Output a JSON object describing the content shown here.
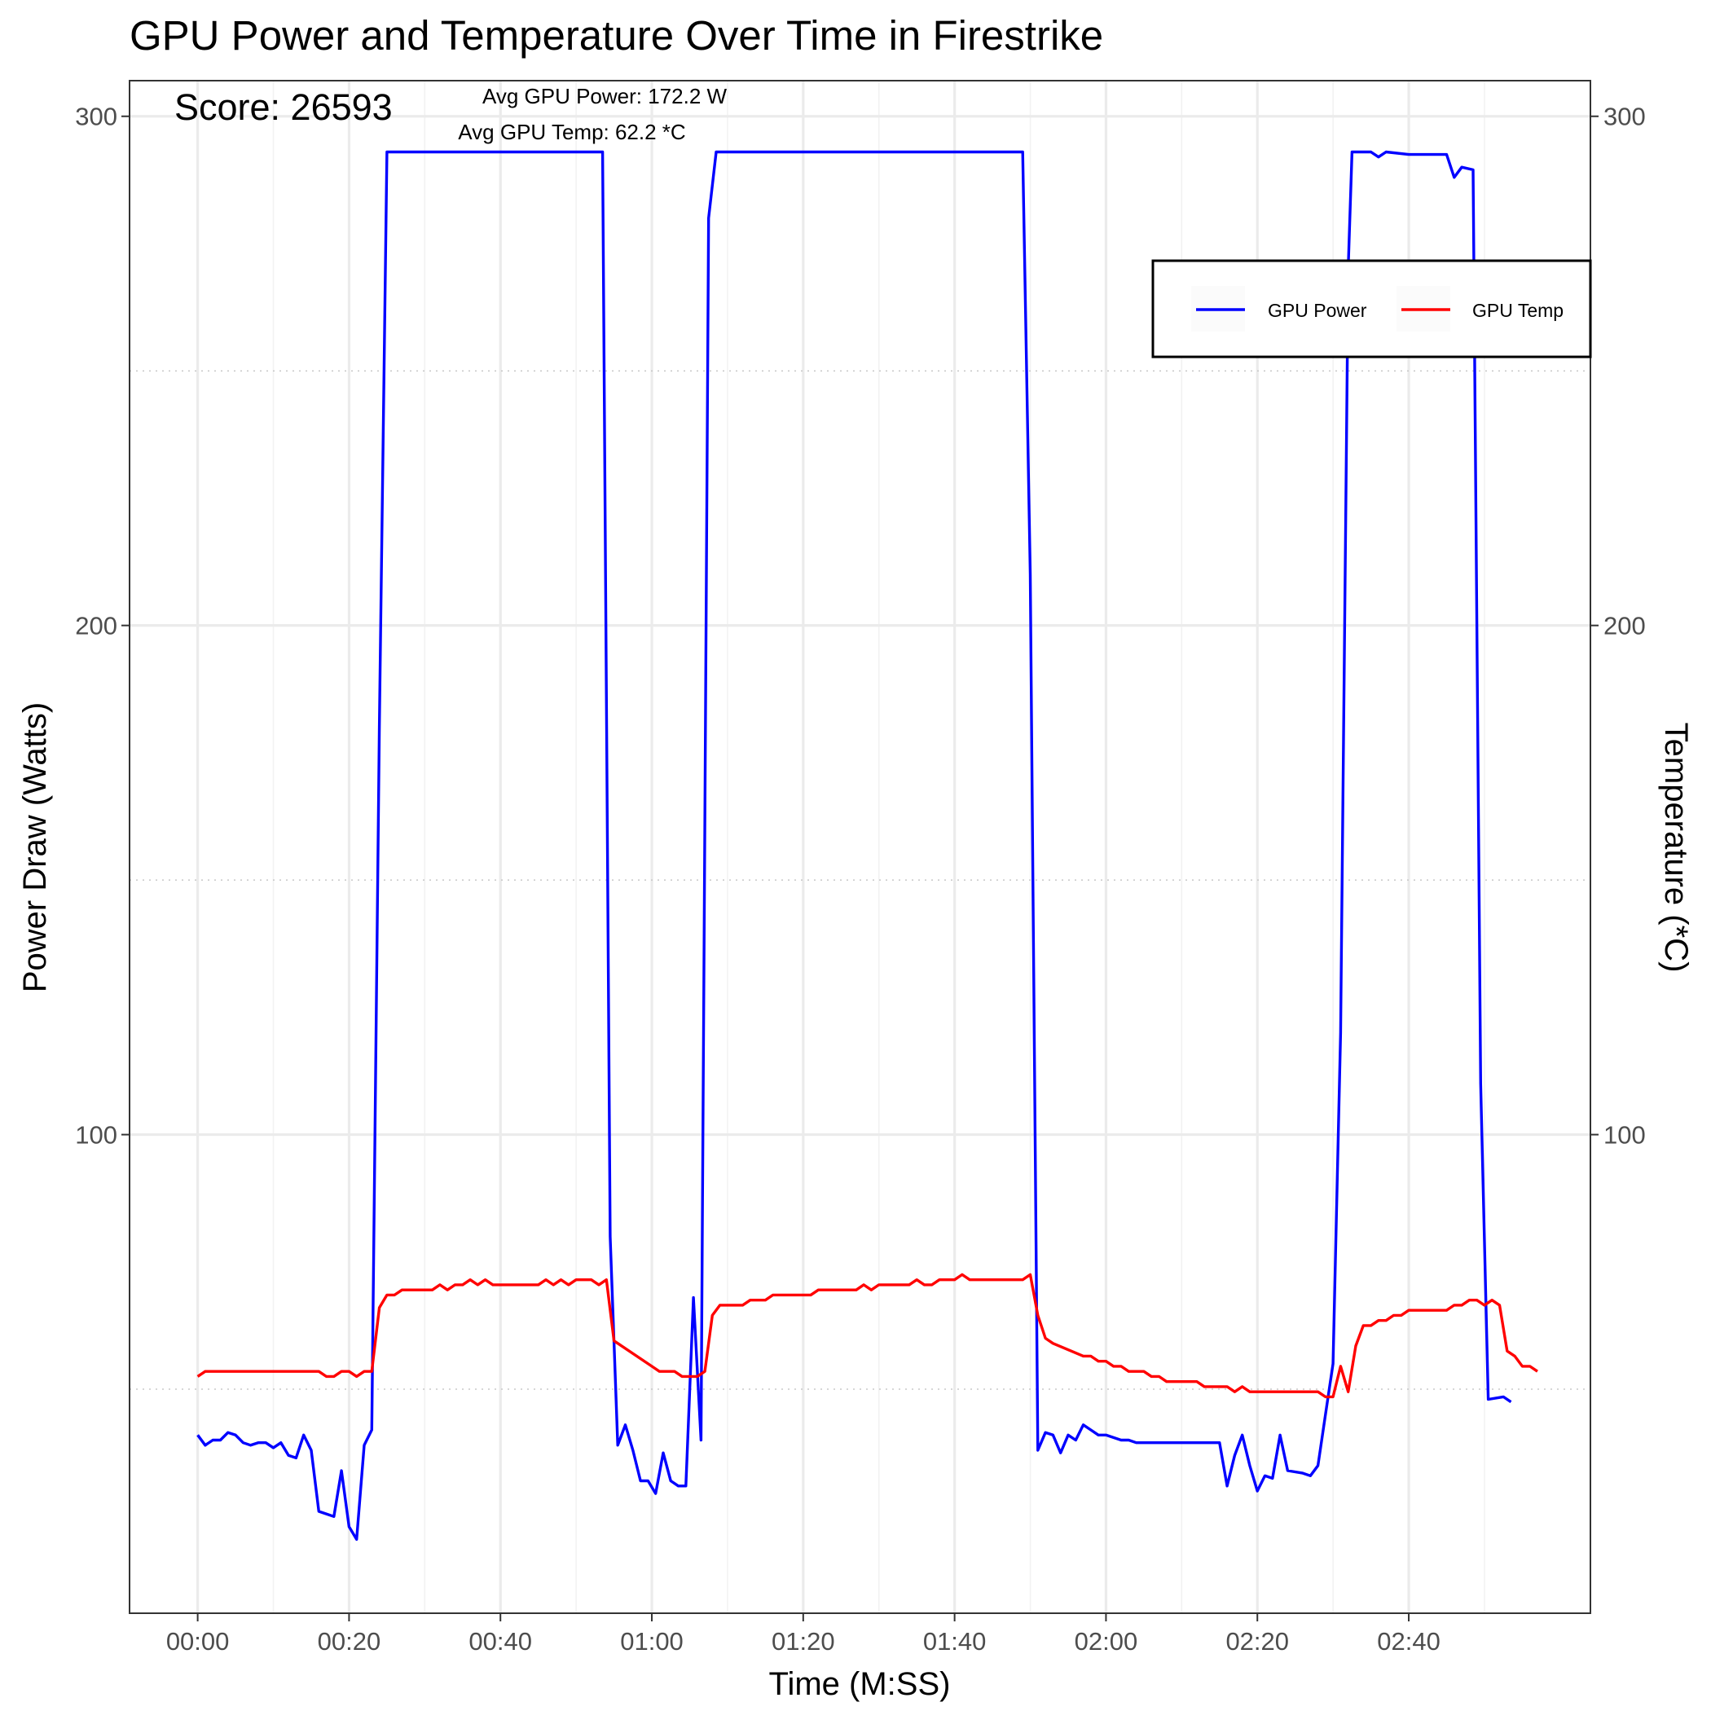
{
  "chart_data": {
    "type": "line",
    "title": "GPU Power and Temperature Over Time in Firestrike",
    "xlabel": "Time (M:SS)",
    "ylabel": "Power Draw (Watts)",
    "ylabel_right": "Temperature (*C)",
    "xlim": [
      -9,
      184
    ],
    "ylim": [
      6,
      307
    ],
    "x_ticks": [
      0,
      20,
      40,
      60,
      80,
      100,
      120,
      140,
      160
    ],
    "x_tick_labels": [
      "00:00",
      "00:20",
      "00:40",
      "01:00",
      "01:20",
      "01:40",
      "02:00",
      "02:20",
      "02:40"
    ],
    "y_ticks": [
      100,
      200,
      300
    ],
    "y_tick_labels": [
      "100",
      "200",
      "300"
    ],
    "y_right_ticks": [
      100,
      200,
      300
    ],
    "y_right_tick_labels": [
      "100",
      "200",
      "300"
    ],
    "annotations": {
      "score": "Score: 26593",
      "avg_power": "Avg GPU Power: 172.2 W",
      "avg_temp": "Avg GPU Temp: 62.2 *C"
    },
    "legend": {
      "position": "top-right",
      "entries": [
        "GPU Power",
        "GPU Temp"
      ]
    },
    "grid": true,
    "series": [
      {
        "name": "GPU Power",
        "color": "#0000FF",
        "points": [
          [
            0,
            41
          ],
          [
            1,
            39
          ],
          [
            2,
            40
          ],
          [
            3,
            40
          ],
          [
            4,
            41.5
          ],
          [
            5,
            41
          ],
          [
            6,
            39.5
          ],
          [
            7,
            39
          ],
          [
            8,
            39.5
          ],
          [
            9,
            39.5
          ],
          [
            10,
            38.5
          ],
          [
            11,
            39.5
          ],
          [
            12,
            37
          ],
          [
            13,
            36.5
          ],
          [
            14,
            41
          ],
          [
            15,
            38
          ],
          [
            16,
            26
          ],
          [
            17,
            25.5
          ],
          [
            18,
            25
          ],
          [
            19,
            34
          ],
          [
            20,
            23
          ],
          [
            21,
            20.5
          ],
          [
            22,
            39
          ],
          [
            23,
            42
          ],
          [
            24,
            180
          ],
          [
            25,
            293
          ],
          [
            30,
            293
          ],
          [
            40,
            293
          ],
          [
            50,
            293
          ],
          [
            53.5,
            293
          ],
          [
            54.5,
            80
          ],
          [
            55.5,
            39
          ],
          [
            56.5,
            43
          ],
          [
            57.5,
            38
          ],
          [
            58.5,
            32
          ],
          [
            59.5,
            32
          ],
          [
            60.5,
            29.5
          ],
          [
            61.5,
            37.5
          ],
          [
            62.5,
            32
          ],
          [
            63.5,
            31
          ],
          [
            64.5,
            31
          ],
          [
            65.5,
            68
          ],
          [
            66.5,
            40
          ],
          [
            67.5,
            280
          ],
          [
            68.5,
            293
          ],
          [
            80,
            293
          ],
          [
            100,
            293
          ],
          [
            109,
            293
          ],
          [
            110,
            210
          ],
          [
            111,
            38
          ],
          [
            112,
            41.5
          ],
          [
            113,
            41
          ],
          [
            114,
            37.5
          ],
          [
            115,
            41
          ],
          [
            116,
            40
          ],
          [
            117,
            43
          ],
          [
            118,
            42
          ],
          [
            119,
            41
          ],
          [
            120,
            41
          ],
          [
            121,
            40.5
          ],
          [
            122,
            40
          ],
          [
            123,
            40
          ],
          [
            124,
            39.5
          ],
          [
            130,
            39.5
          ],
          [
            135,
            39.5
          ],
          [
            136,
            31
          ],
          [
            137,
            37
          ],
          [
            138,
            41
          ],
          [
            139,
            35
          ],
          [
            140,
            30
          ],
          [
            141,
            33
          ],
          [
            142,
            32.5
          ],
          [
            143,
            41
          ],
          [
            144,
            34
          ],
          [
            146,
            33.5
          ],
          [
            147,
            33
          ],
          [
            148,
            35
          ],
          [
            149,
            45
          ],
          [
            150,
            55
          ],
          [
            151,
            120
          ],
          [
            152,
            270
          ],
          [
            152.5,
            293
          ],
          [
            155,
            293
          ],
          [
            156,
            292
          ],
          [
            157,
            293
          ],
          [
            160,
            292.5
          ],
          [
            165,
            292.5
          ],
          [
            166,
            288
          ],
          [
            167,
            290
          ],
          [
            168.5,
            289.5
          ],
          [
            169.5,
            110
          ],
          [
            170.5,
            48
          ],
          [
            172.5,
            48.5
          ],
          [
            173.5,
            47.5
          ]
        ]
      },
      {
        "name": "GPU Temp",
        "color": "#FF0000",
        "points": [
          [
            0,
            52.5
          ],
          [
            1,
            53.5
          ],
          [
            10,
            53.5
          ],
          [
            16,
            53.5
          ],
          [
            17,
            52.5
          ],
          [
            18,
            52.5
          ],
          [
            19,
            53.5
          ],
          [
            20,
            53.5
          ],
          [
            21,
            52.5
          ],
          [
            22,
            53.5
          ],
          [
            23,
            53.5
          ],
          [
            24,
            66
          ],
          [
            25,
            68.5
          ],
          [
            26,
            68.5
          ],
          [
            27,
            69.5
          ],
          [
            31,
            69.5
          ],
          [
            32,
            70.5
          ],
          [
            33,
            69.5
          ],
          [
            34,
            70.5
          ],
          [
            35,
            70.5
          ],
          [
            36,
            71.5
          ],
          [
            37,
            70.5
          ],
          [
            38,
            71.5
          ],
          [
            39,
            70.5
          ],
          [
            45,
            70.5
          ],
          [
            46,
            71.5
          ],
          [
            47,
            70.5
          ],
          [
            48,
            71.5
          ],
          [
            49,
            70.5
          ],
          [
            50,
            71.5
          ],
          [
            52,
            71.5
          ],
          [
            53,
            70.5
          ],
          [
            54,
            71.5
          ],
          [
            55,
            59.5
          ],
          [
            56,
            58.5
          ],
          [
            60,
            54.5
          ],
          [
            61,
            53.5
          ],
          [
            63,
            53.5
          ],
          [
            64,
            52.5
          ],
          [
            66,
            52.5
          ],
          [
            67,
            53.5
          ],
          [
            68,
            64.5
          ],
          [
            69,
            66.5
          ],
          [
            72,
            66.5
          ],
          [
            73,
            67.5
          ],
          [
            75,
            67.5
          ],
          [
            76,
            68.5
          ],
          [
            81,
            68.5
          ],
          [
            82,
            69.5
          ],
          [
            87,
            69.5
          ],
          [
            88,
            70.5
          ],
          [
            89,
            69.5
          ],
          [
            90,
            70.5
          ],
          [
            94,
            70.5
          ],
          [
            95,
            71.5
          ],
          [
            96,
            70.5
          ],
          [
            97,
            70.5
          ],
          [
            98,
            71.5
          ],
          [
            100,
            71.5
          ],
          [
            101,
            72.5
          ],
          [
            102,
            71.5
          ],
          [
            109,
            71.5
          ],
          [
            110,
            72.5
          ],
          [
            111,
            64.5
          ],
          [
            112,
            60
          ],
          [
            113,
            59
          ],
          [
            117,
            56.5
          ],
          [
            118,
            56.5
          ],
          [
            119,
            55.5
          ],
          [
            120,
            55.5
          ],
          [
            121,
            54.5
          ],
          [
            122,
            54.5
          ],
          [
            123,
            53.5
          ],
          [
            125,
            53.5
          ],
          [
            126,
            52.5
          ],
          [
            127,
            52.5
          ],
          [
            128,
            51.5
          ],
          [
            132,
            51.5
          ],
          [
            133,
            50.5
          ],
          [
            136,
            50.5
          ],
          [
            137,
            49.5
          ],
          [
            138,
            50.5
          ],
          [
            139,
            49.5
          ],
          [
            148,
            49.5
          ],
          [
            149,
            48.5
          ],
          [
            150,
            48.5
          ],
          [
            151,
            54.5
          ],
          [
            152,
            49.5
          ],
          [
            153,
            58.5
          ],
          [
            154,
            62.5
          ],
          [
            155,
            62.5
          ],
          [
            156,
            63.5
          ],
          [
            157,
            63.5
          ],
          [
            158,
            64.5
          ],
          [
            159,
            64.5
          ],
          [
            160,
            65.5
          ],
          [
            165,
            65.5
          ],
          [
            166,
            66.5
          ],
          [
            167,
            66.5
          ],
          [
            168,
            67.5
          ],
          [
            169,
            67.5
          ],
          [
            170,
            66.5
          ],
          [
            171,
            67.5
          ],
          [
            172,
            66.5
          ],
          [
            173,
            57.5
          ],
          [
            174,
            56.5
          ],
          [
            175,
            54.5
          ],
          [
            176,
            54.5
          ],
          [
            177,
            53.5
          ]
        ]
      }
    ]
  }
}
